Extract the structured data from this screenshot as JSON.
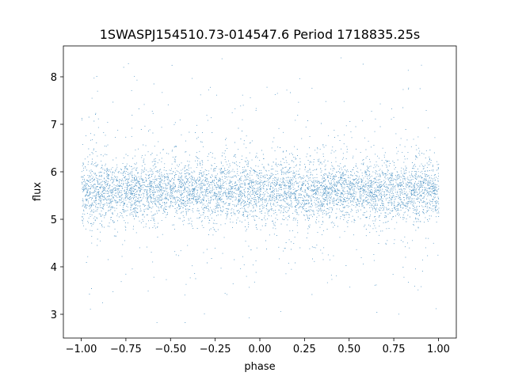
{
  "chart_data": {
    "type": "scatter",
    "title": "1SWASPJ154510.73-014547.6 Period 1718835.25s",
    "xlabel": "phase",
    "ylabel": "flux",
    "xlim": [
      -1.1,
      1.1
    ],
    "ylim": [
      2.5,
      8.65
    ],
    "xticks": [
      -1.0,
      -0.75,
      -0.5,
      -0.25,
      0.0,
      0.25,
      0.5,
      0.75,
      1.0
    ],
    "xtick_labels": [
      "−1.00",
      "−0.75",
      "−0.50",
      "−0.25",
      "0.00",
      "0.25",
      "0.50",
      "0.75",
      "1.00"
    ],
    "yticks": [
      3,
      4,
      5,
      6,
      7,
      8
    ],
    "ytick_labels": [
      "3",
      "4",
      "5",
      "6",
      "7",
      "8"
    ],
    "grid": false,
    "marker_color": "#1f77b4",
    "series": [
      {
        "x_range": [
          -1.0,
          1.0
        ],
        "y_center": 5.6,
        "y_core_spread": [
          5.0,
          6.3
        ],
        "y_extent": [
          2.75,
          8.45
        ]
      }
    ]
  }
}
